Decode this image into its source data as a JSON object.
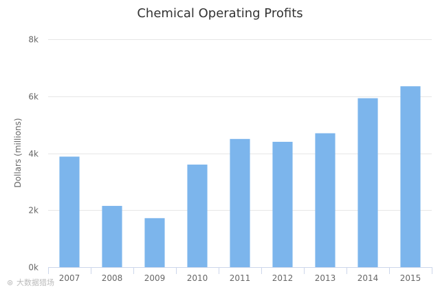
{
  "chart_data": {
    "type": "bar",
    "title": "Chemical Operating Profits",
    "xlabel": "",
    "ylabel": "Dollars (millions)",
    "categories": [
      "2007",
      "2008",
      "2009",
      "2010",
      "2011",
      "2012",
      "2013",
      "2014",
      "2015"
    ],
    "values": [
      3880,
      2150,
      1720,
      3600,
      4500,
      4400,
      4700,
      5930,
      6350
    ],
    "ylim": [
      0,
      8000
    ],
    "yticks": [
      0,
      2000,
      4000,
      6000,
      8000
    ],
    "ytick_labels": [
      "0k",
      "2k",
      "4k",
      "6k",
      "8k"
    ],
    "grid": true,
    "legend": "none",
    "bar_color": "#7cb5ec"
  },
  "watermark": {
    "text": "大数据猎场",
    "logo_icon": "logo-icon"
  }
}
